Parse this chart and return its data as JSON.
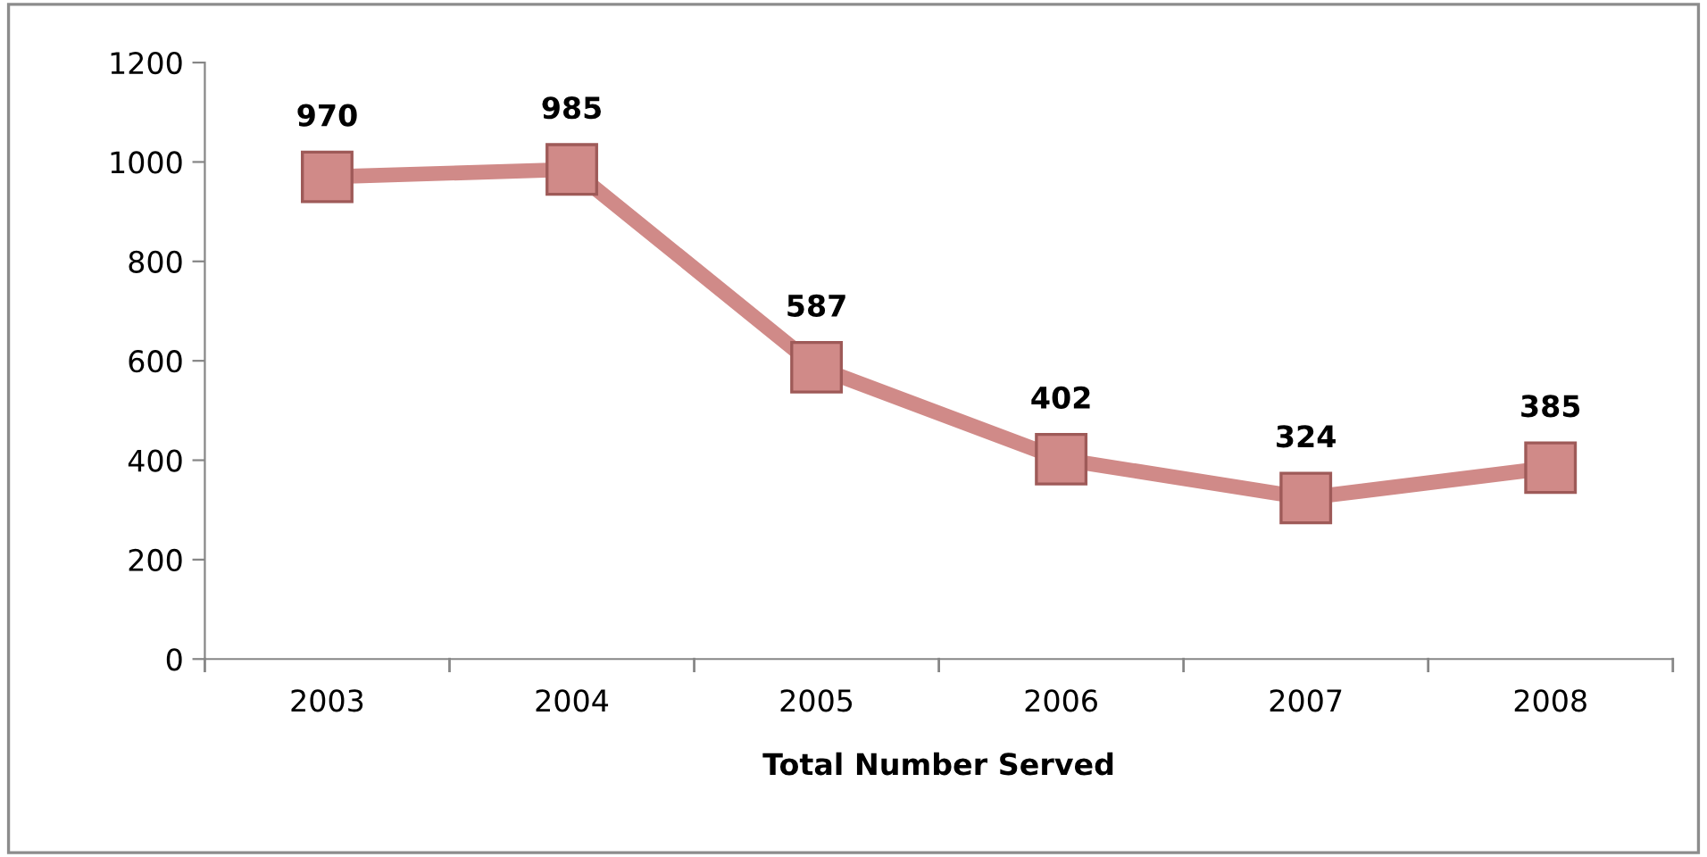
{
  "chart_data": {
    "type": "line",
    "xlabel": "Total Number Served",
    "categories": [
      "2003",
      "2004",
      "2005",
      "2006",
      "2007",
      "2008"
    ],
    "series": [
      {
        "color": "#d08a88",
        "values": [
          970,
          985,
          587,
          402,
          324,
          385
        ]
      }
    ],
    "ylim": [
      0,
      1200
    ],
    "yticks": [
      0,
      200,
      400,
      600,
      800,
      1000,
      1200
    ],
    "grid": false,
    "legend": false,
    "marker": "square",
    "line_style": "solid",
    "data_labels": true
  }
}
